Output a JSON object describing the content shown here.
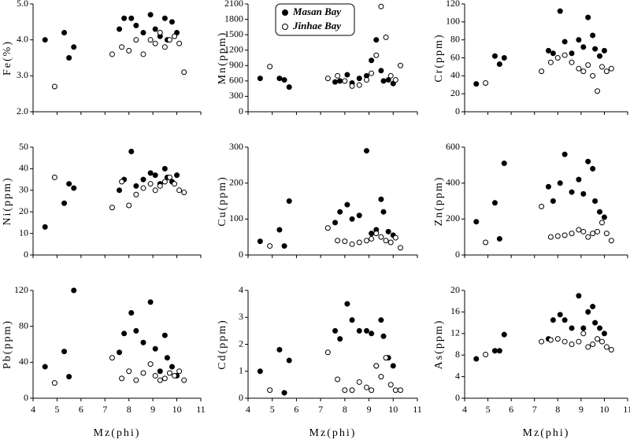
{
  "chart_data": [
    {
      "type": "scatter",
      "ylabel": "Fe(%)",
      "xlim": [
        4,
        11
      ],
      "xticks": [
        4,
        5,
        6,
        7,
        8,
        9,
        10,
        11
      ],
      "ylim": [
        2,
        5
      ],
      "yticks": [
        {
          "value": 2,
          "label": "2.0"
        },
        {
          "value": 3,
          "label": "3.0"
        },
        {
          "value": 4,
          "label": "4.0"
        },
        {
          "value": 5,
          "label": "5.0"
        }
      ],
      "series": [
        {
          "color": "#000000",
          "marker": "filled",
          "x": [
            4.5,
            5.3,
            5.5,
            5.7,
            7.6,
            7.8,
            8.1,
            8.3,
            8.6,
            8.9,
            9.1,
            9.3,
            9.5,
            9.6,
            9.8,
            10.0
          ],
          "values": [
            4.0,
            4.2,
            3.5,
            3.8,
            4.3,
            4.6,
            4.6,
            4.4,
            4.2,
            4.7,
            4.3,
            4.1,
            4.6,
            4.0,
            4.5,
            4.2
          ]
        },
        {
          "color": "#000000",
          "marker": "open",
          "x": [
            4.9,
            7.3,
            7.7,
            8.0,
            8.3,
            8.6,
            8.9,
            9.1,
            9.3,
            9.5,
            9.7,
            9.9,
            10.1,
            10.3
          ],
          "values": [
            2.7,
            3.6,
            3.8,
            3.7,
            4.0,
            3.6,
            4.0,
            3.9,
            4.2,
            3.8,
            4.0,
            4.1,
            3.9,
            3.1
          ]
        }
      ]
    },
    {
      "type": "scatter",
      "ylabel": "Mn(ppm)",
      "xlim": [
        4,
        11
      ],
      "xticks": [
        4,
        5,
        6,
        7,
        8,
        9,
        10,
        11
      ],
      "ylim": [
        0,
        2100
      ],
      "yticks": [
        0,
        300,
        600,
        900,
        1200,
        1500,
        1800,
        2100
      ],
      "legend": "upper left",
      "series": [
        {
          "name": "Masan Bay",
          "color": "#000000",
          "marker": "filled",
          "x": [
            4.5,
            5.3,
            5.5,
            5.7,
            7.6,
            7.8,
            8.1,
            8.3,
            8.6,
            8.9,
            9.1,
            9.3,
            9.5,
            9.6,
            9.8,
            10.0
          ],
          "values": [
            650,
            650,
            620,
            480,
            580,
            600,
            720,
            560,
            650,
            700,
            1000,
            1400,
            800,
            600,
            620,
            550
          ]
        },
        {
          "name": "Jinhae Bay",
          "color": "#000000",
          "marker": "open",
          "x": [
            4.9,
            7.3,
            7.7,
            8.0,
            8.3,
            8.6,
            8.9,
            9.1,
            9.3,
            9.5,
            9.7,
            9.9,
            10.1,
            10.3
          ],
          "values": [
            880,
            650,
            700,
            600,
            500,
            520,
            620,
            750,
            1100,
            2050,
            1450,
            700,
            620,
            900
          ]
        }
      ]
    },
    {
      "type": "scatter",
      "ylabel": "Cr(ppm)",
      "xlim": [
        4,
        11
      ],
      "xticks": [
        4,
        5,
        6,
        7,
        8,
        9,
        10,
        11
      ],
      "ylim": [
        0,
        120
      ],
      "yticks": [
        0,
        20,
        40,
        60,
        80,
        100,
        120
      ],
      "series": [
        {
          "color": "#000000",
          "marker": "filled",
          "x": [
            4.5,
            5.3,
            5.5,
            5.7,
            7.6,
            7.8,
            8.1,
            8.3,
            8.6,
            8.9,
            9.1,
            9.3,
            9.5,
            9.6,
            9.8,
            10.0
          ],
          "values": [
            31,
            62,
            53,
            60,
            68,
            65,
            112,
            78,
            65,
            80,
            72,
            105,
            85,
            70,
            62,
            68
          ]
        },
        {
          "color": "#000000",
          "marker": "open",
          "x": [
            4.9,
            7.3,
            7.7,
            8.0,
            8.3,
            8.6,
            8.9,
            9.1,
            9.3,
            9.5,
            9.7,
            9.9,
            10.1,
            10.3
          ],
          "values": [
            32,
            45,
            55,
            60,
            63,
            55,
            48,
            45,
            52,
            40,
            23,
            50,
            45,
            48
          ]
        }
      ]
    },
    {
      "type": "scatter",
      "ylabel": "Ni(ppm)",
      "xlim": [
        4,
        11
      ],
      "xticks": [
        4,
        5,
        6,
        7,
        8,
        9,
        10,
        11
      ],
      "ylim": [
        0,
        50
      ],
      "yticks": [
        0,
        10,
        20,
        30,
        40,
        50
      ],
      "series": [
        {
          "color": "#000000",
          "marker": "filled",
          "x": [
            4.5,
            5.3,
            5.5,
            5.7,
            7.6,
            7.8,
            8.1,
            8.3,
            8.6,
            8.9,
            9.1,
            9.3,
            9.5,
            9.6,
            9.8,
            10.0
          ],
          "values": [
            13,
            24,
            33,
            31,
            30,
            35,
            48,
            32,
            35,
            38,
            37,
            33,
            40,
            36,
            34,
            37
          ]
        },
        {
          "color": "#000000",
          "marker": "open",
          "x": [
            4.9,
            7.3,
            7.7,
            8.0,
            8.3,
            8.6,
            8.9,
            9.1,
            9.3,
            9.5,
            9.7,
            9.9,
            10.1,
            10.3
          ],
          "values": [
            36,
            22,
            34,
            23,
            28,
            31,
            33,
            30,
            32,
            34,
            36,
            33,
            30,
            29
          ]
        }
      ]
    },
    {
      "type": "scatter",
      "ylabel": "Cu(ppm)",
      "xlim": [
        4,
        11
      ],
      "xticks": [
        4,
        5,
        6,
        7,
        8,
        9,
        10,
        11
      ],
      "ylim": [
        0,
        300
      ],
      "yticks": [
        0,
        100,
        200,
        300
      ],
      "series": [
        {
          "color": "#000000",
          "marker": "filled",
          "x": [
            4.5,
            5.3,
            5.5,
            5.7,
            7.6,
            7.8,
            8.1,
            8.3,
            8.6,
            8.9,
            9.1,
            9.3,
            9.5,
            9.6,
            9.8,
            10.0
          ],
          "values": [
            38,
            70,
            25,
            150,
            90,
            120,
            140,
            100,
            110,
            290,
            60,
            70,
            155,
            120,
            65,
            55
          ]
        },
        {
          "color": "#000000",
          "marker": "open",
          "x": [
            4.9,
            7.3,
            7.7,
            8.0,
            8.3,
            8.6,
            8.9,
            9.1,
            9.3,
            9.5,
            9.7,
            9.9,
            10.1,
            10.3
          ],
          "values": [
            25,
            75,
            40,
            38,
            30,
            35,
            40,
            45,
            60,
            50,
            40,
            35,
            48,
            20
          ]
        }
      ]
    },
    {
      "type": "scatter",
      "ylabel": "Zn(ppm)",
      "xlim": [
        4,
        11
      ],
      "xticks": [
        4,
        5,
        6,
        7,
        8,
        9,
        10,
        11
      ],
      "ylim": [
        0,
        600
      ],
      "yticks": [
        0,
        200,
        400,
        600
      ],
      "series": [
        {
          "color": "#000000",
          "marker": "filled",
          "x": [
            4.5,
            5.3,
            5.5,
            5.7,
            7.6,
            7.8,
            8.1,
            8.3,
            8.6,
            8.9,
            9.1,
            9.3,
            9.5,
            9.6,
            9.8,
            10.0
          ],
          "values": [
            185,
            290,
            90,
            510,
            380,
            300,
            400,
            560,
            350,
            420,
            340,
            520,
            480,
            300,
            240,
            210
          ]
        },
        {
          "color": "#000000",
          "marker": "open",
          "x": [
            4.9,
            7.3,
            7.7,
            8.0,
            8.3,
            8.6,
            8.9,
            9.1,
            9.3,
            9.5,
            9.7,
            9.9,
            10.1,
            10.3
          ],
          "values": [
            70,
            270,
            100,
            105,
            110,
            120,
            140,
            130,
            100,
            120,
            130,
            180,
            120,
            80
          ]
        }
      ]
    },
    {
      "type": "scatter",
      "ylabel": "Pb(ppm)",
      "xlabel": "Mz(phi)",
      "xlim": [
        4,
        11
      ],
      "xticks": [
        4,
        5,
        6,
        7,
        8,
        9,
        10,
        11
      ],
      "ylim": [
        0,
        120
      ],
      "yticks": [
        0,
        40,
        80,
        120
      ],
      "series": [
        {
          "color": "#000000",
          "marker": "filled",
          "x": [
            4.5,
            5.3,
            5.5,
            5.7,
            7.6,
            7.8,
            8.1,
            8.3,
            8.6,
            8.9,
            9.1,
            9.3,
            9.5,
            9.6,
            9.8,
            10.0
          ],
          "values": [
            35,
            52,
            24,
            120,
            51,
            72,
            95,
            75,
            62,
            107,
            55,
            30,
            70,
            45,
            35,
            25
          ]
        },
        {
          "color": "#000000",
          "marker": "open",
          "x": [
            4.9,
            7.3,
            7.7,
            8.0,
            8.3,
            8.6,
            8.9,
            9.1,
            9.3,
            9.5,
            9.7,
            9.9,
            10.1,
            10.3
          ],
          "values": [
            17,
            45,
            22,
            30,
            20,
            28,
            38,
            25,
            20,
            22,
            28,
            25,
            30,
            20
          ]
        }
      ]
    },
    {
      "type": "scatter",
      "ylabel": "Cd(ppm)",
      "xlabel": "Mz(phi)",
      "xlim": [
        4,
        11
      ],
      "xticks": [
        4,
        5,
        6,
        7,
        8,
        9,
        10,
        11
      ],
      "ylim": [
        0,
        4
      ],
      "yticks": [
        0,
        1,
        2,
        3,
        4
      ],
      "series": [
        {
          "color": "#000000",
          "marker": "filled",
          "x": [
            4.5,
            5.3,
            5.5,
            5.7,
            7.6,
            7.8,
            8.1,
            8.3,
            8.6,
            8.9,
            9.1,
            9.3,
            9.5,
            9.6,
            9.8,
            10.0
          ],
          "values": [
            1.0,
            1.8,
            0.2,
            1.4,
            2.5,
            2.2,
            3.5,
            2.9,
            2.5,
            2.5,
            2.4,
            1.2,
            2.9,
            2.3,
            1.5,
            1.2
          ]
        },
        {
          "color": "#000000",
          "marker": "open",
          "x": [
            4.9,
            7.3,
            7.7,
            8.0,
            8.3,
            8.6,
            8.9,
            9.1,
            9.3,
            9.5,
            9.7,
            9.9,
            10.1,
            10.3
          ],
          "values": [
            0.3,
            1.7,
            0.7,
            0.3,
            0.3,
            0.6,
            0.4,
            0.3,
            1.2,
            0.8,
            1.5,
            0.5,
            0.3,
            0.3
          ]
        }
      ]
    },
    {
      "type": "scatter",
      "ylabel": "As(ppm)",
      "xlabel": "Mz(phi)",
      "xlim": [
        4,
        11
      ],
      "xticks": [
        4,
        5,
        6,
        7,
        8,
        9,
        10,
        11
      ],
      "ylim": [
        0,
        20
      ],
      "yticks": [
        0,
        4,
        8,
        12,
        16,
        20
      ],
      "series": [
        {
          "color": "#000000",
          "marker": "filled",
          "x": [
            4.5,
            5.3,
            5.5,
            5.7,
            7.6,
            7.8,
            8.1,
            8.3,
            8.6,
            8.9,
            9.1,
            9.3,
            9.5,
            9.6,
            9.8,
            10.0
          ],
          "values": [
            7.3,
            8.8,
            8.8,
            11.8,
            11,
            14.5,
            15.5,
            14.5,
            13,
            19,
            13,
            16,
            17,
            14,
            13,
            12
          ]
        },
        {
          "color": "#000000",
          "marker": "open",
          "x": [
            4.9,
            7.3,
            7.7,
            8.0,
            8.3,
            8.6,
            8.9,
            9.1,
            9.3,
            9.5,
            9.7,
            9.9,
            10.1,
            10.3
          ],
          "values": [
            8.1,
            10.5,
            10.8,
            11,
            10.5,
            10,
            10.5,
            12,
            9.5,
            10,
            11,
            10.5,
            9.5,
            9
          ]
        }
      ]
    }
  ]
}
